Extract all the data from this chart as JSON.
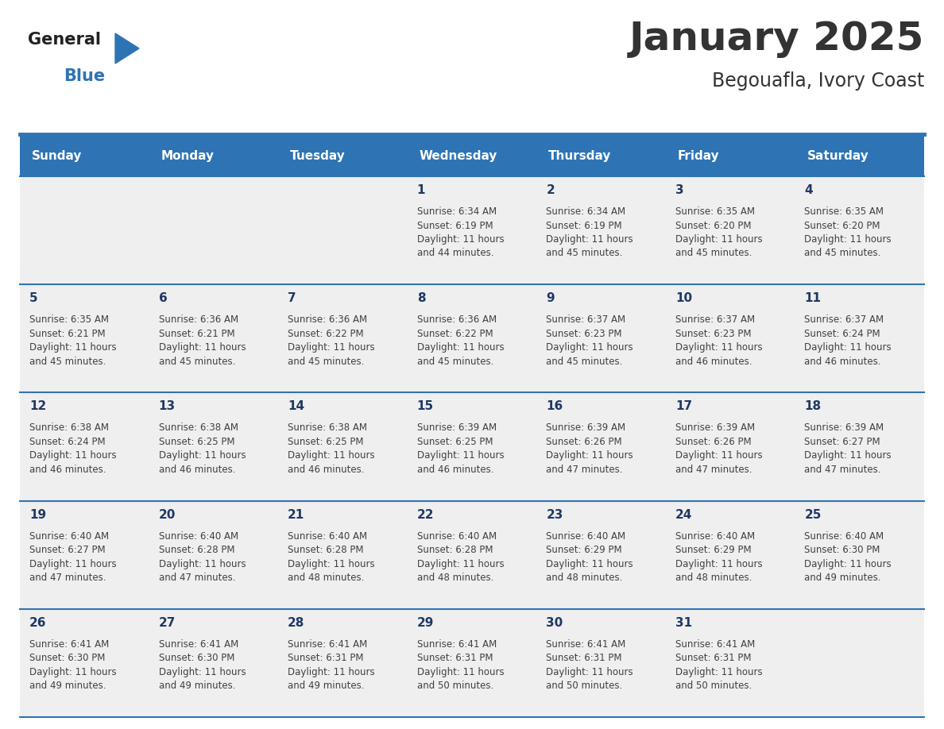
{
  "title": "January 2025",
  "subtitle": "Begouafla, Ivory Coast",
  "header_bg": "#2E74B5",
  "header_text_color": "#FFFFFF",
  "day_names": [
    "Sunday",
    "Monday",
    "Tuesday",
    "Wednesday",
    "Thursday",
    "Friday",
    "Saturday"
  ],
  "cell_bg_light": "#EFEFEF",
  "divider_color": "#2E74B5",
  "text_color": "#404040",
  "day_num_color": "#1F3864",
  "logo_general_color": "#222222",
  "logo_blue_color": "#2E74B5",
  "calendar": [
    [
      null,
      null,
      null,
      {
        "day": "1",
        "sunrise": "6:34 AM",
        "sunset": "6:19 PM",
        "daylight": "11 hours",
        "daylight2": "and 44 minutes."
      },
      {
        "day": "2",
        "sunrise": "6:34 AM",
        "sunset": "6:19 PM",
        "daylight": "11 hours",
        "daylight2": "and 45 minutes."
      },
      {
        "day": "3",
        "sunrise": "6:35 AM",
        "sunset": "6:20 PM",
        "daylight": "11 hours",
        "daylight2": "and 45 minutes."
      },
      {
        "day": "4",
        "sunrise": "6:35 AM",
        "sunset": "6:20 PM",
        "daylight": "11 hours",
        "daylight2": "and 45 minutes."
      }
    ],
    [
      {
        "day": "5",
        "sunrise": "6:35 AM",
        "sunset": "6:21 PM",
        "daylight": "11 hours",
        "daylight2": "and 45 minutes."
      },
      {
        "day": "6",
        "sunrise": "6:36 AM",
        "sunset": "6:21 PM",
        "daylight": "11 hours",
        "daylight2": "and 45 minutes."
      },
      {
        "day": "7",
        "sunrise": "6:36 AM",
        "sunset": "6:22 PM",
        "daylight": "11 hours",
        "daylight2": "and 45 minutes."
      },
      {
        "day": "8",
        "sunrise": "6:36 AM",
        "sunset": "6:22 PM",
        "daylight": "11 hours",
        "daylight2": "and 45 minutes."
      },
      {
        "day": "9",
        "sunrise": "6:37 AM",
        "sunset": "6:23 PM",
        "daylight": "11 hours",
        "daylight2": "and 45 minutes."
      },
      {
        "day": "10",
        "sunrise": "6:37 AM",
        "sunset": "6:23 PM",
        "daylight": "11 hours",
        "daylight2": "and 46 minutes."
      },
      {
        "day": "11",
        "sunrise": "6:37 AM",
        "sunset": "6:24 PM",
        "daylight": "11 hours",
        "daylight2": "and 46 minutes."
      }
    ],
    [
      {
        "day": "12",
        "sunrise": "6:38 AM",
        "sunset": "6:24 PM",
        "daylight": "11 hours",
        "daylight2": "and 46 minutes."
      },
      {
        "day": "13",
        "sunrise": "6:38 AM",
        "sunset": "6:25 PM",
        "daylight": "11 hours",
        "daylight2": "and 46 minutes."
      },
      {
        "day": "14",
        "sunrise": "6:38 AM",
        "sunset": "6:25 PM",
        "daylight": "11 hours",
        "daylight2": "and 46 minutes."
      },
      {
        "day": "15",
        "sunrise": "6:39 AM",
        "sunset": "6:25 PM",
        "daylight": "11 hours",
        "daylight2": "and 46 minutes."
      },
      {
        "day": "16",
        "sunrise": "6:39 AM",
        "sunset": "6:26 PM",
        "daylight": "11 hours",
        "daylight2": "and 47 minutes."
      },
      {
        "day": "17",
        "sunrise": "6:39 AM",
        "sunset": "6:26 PM",
        "daylight": "11 hours",
        "daylight2": "and 47 minutes."
      },
      {
        "day": "18",
        "sunrise": "6:39 AM",
        "sunset": "6:27 PM",
        "daylight": "11 hours",
        "daylight2": "and 47 minutes."
      }
    ],
    [
      {
        "day": "19",
        "sunrise": "6:40 AM",
        "sunset": "6:27 PM",
        "daylight": "11 hours",
        "daylight2": "and 47 minutes."
      },
      {
        "day": "20",
        "sunrise": "6:40 AM",
        "sunset": "6:28 PM",
        "daylight": "11 hours",
        "daylight2": "and 47 minutes."
      },
      {
        "day": "21",
        "sunrise": "6:40 AM",
        "sunset": "6:28 PM",
        "daylight": "11 hours",
        "daylight2": "and 48 minutes."
      },
      {
        "day": "22",
        "sunrise": "6:40 AM",
        "sunset": "6:28 PM",
        "daylight": "11 hours",
        "daylight2": "and 48 minutes."
      },
      {
        "day": "23",
        "sunrise": "6:40 AM",
        "sunset": "6:29 PM",
        "daylight": "11 hours",
        "daylight2": "and 48 minutes."
      },
      {
        "day": "24",
        "sunrise": "6:40 AM",
        "sunset": "6:29 PM",
        "daylight": "11 hours",
        "daylight2": "and 48 minutes."
      },
      {
        "day": "25",
        "sunrise": "6:40 AM",
        "sunset": "6:30 PM",
        "daylight": "11 hours",
        "daylight2": "and 49 minutes."
      }
    ],
    [
      {
        "day": "26",
        "sunrise": "6:41 AM",
        "sunset": "6:30 PM",
        "daylight": "11 hours",
        "daylight2": "and 49 minutes."
      },
      {
        "day": "27",
        "sunrise": "6:41 AM",
        "sunset": "6:30 PM",
        "daylight": "11 hours",
        "daylight2": "and 49 minutes."
      },
      {
        "day": "28",
        "sunrise": "6:41 AM",
        "sunset": "6:31 PM",
        "daylight": "11 hours",
        "daylight2": "and 49 minutes."
      },
      {
        "day": "29",
        "sunrise": "6:41 AM",
        "sunset": "6:31 PM",
        "daylight": "11 hours",
        "daylight2": "and 50 minutes."
      },
      {
        "day": "30",
        "sunrise": "6:41 AM",
        "sunset": "6:31 PM",
        "daylight": "11 hours",
        "daylight2": "and 50 minutes."
      },
      {
        "day": "31",
        "sunrise": "6:41 AM",
        "sunset": "6:31 PM",
        "daylight": "11 hours",
        "daylight2": "and 50 minutes."
      },
      null
    ]
  ]
}
